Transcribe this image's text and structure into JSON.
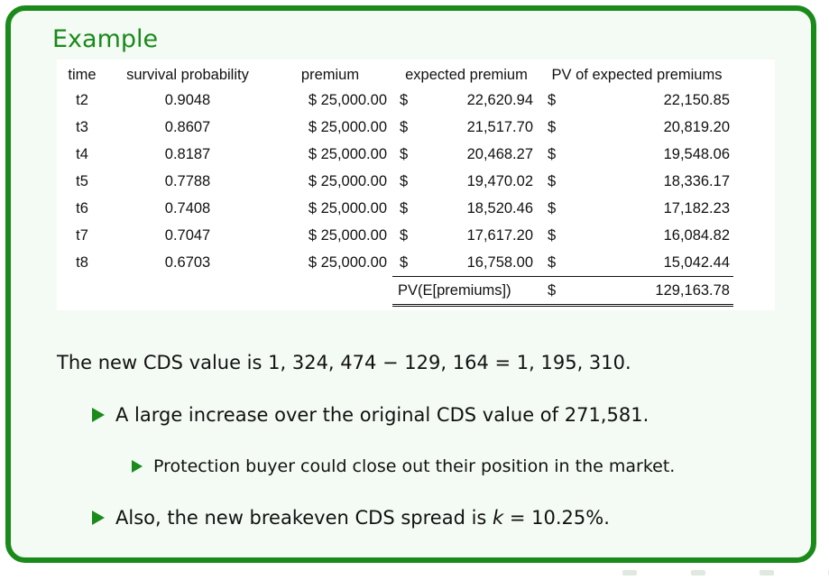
{
  "block": {
    "title": "Example"
  },
  "table": {
    "headers": {
      "time": "time",
      "survival": "survival probability",
      "premium": "premium",
      "expected": "expected premium",
      "pv": "PV of expected premiums"
    },
    "currency": "$",
    "rows": [
      {
        "time": "t2",
        "survival": "0.9048",
        "premium": "$ 25,000.00",
        "expected": "22,620.94",
        "pv": "22,150.85"
      },
      {
        "time": "t3",
        "survival": "0.8607",
        "premium": "$ 25,000.00",
        "expected": "21,517.70",
        "pv": "20,819.20"
      },
      {
        "time": "t4",
        "survival": "0.8187",
        "premium": "$ 25,000.00",
        "expected": "20,468.27",
        "pv": "19,548.06"
      },
      {
        "time": "t5",
        "survival": "0.7788",
        "premium": "$ 25,000.00",
        "expected": "19,470.02",
        "pv": "18,336.17"
      },
      {
        "time": "t6",
        "survival": "0.7408",
        "premium": "$ 25,000.00",
        "expected": "18,520.46",
        "pv": "17,182.23"
      },
      {
        "time": "t7",
        "survival": "0.7047",
        "premium": "$ 25,000.00",
        "expected": "17,617.20",
        "pv": "16,084.82"
      },
      {
        "time": "t8",
        "survival": "0.6703",
        "premium": "$ 25,000.00",
        "expected": "16,758.00",
        "pv": "15,042.44"
      }
    ],
    "total": {
      "label": "PV(E[premiums])",
      "currency": "$",
      "value": "129,163.78"
    }
  },
  "prose": {
    "statement": "The new CDS value is 1, 324, 474 − 129, 164 = 1, 195, 310.",
    "bullet1": "A large increase over the original CDS value of 271,581.",
    "subbullet1": "Protection buyer could close out their position in the market.",
    "bullet2_prefix": "Also, the new breakeven CDS spread is ",
    "bullet2_var": "k",
    "bullet2_suffix": " = 10.25%."
  },
  "colors": {
    "accent": "#1a8a1a",
    "block_bg": "#f4fbf4"
  }
}
